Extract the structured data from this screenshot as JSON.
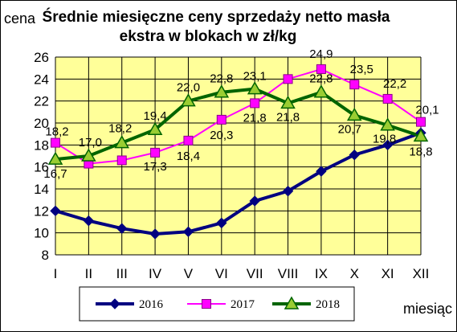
{
  "chart_data": {
    "type": "line",
    "title_lines": [
      "Średnie miesięczne ceny sprzedaży netto masła",
      "ekstra w blokach w zł/kg"
    ],
    "ylabel": "cena",
    "xlabel": "miesiąc",
    "categories": [
      "I",
      "II",
      "III",
      "IV",
      "V",
      "VI",
      "VII",
      "VIII",
      "IX",
      "X",
      "XI",
      "XII"
    ],
    "ylim": [
      8,
      26
    ],
    "yticks": [
      8,
      10,
      12,
      14,
      16,
      18,
      20,
      22,
      24,
      26
    ],
    "grid": true,
    "plot_background": "#FFFF99",
    "legend_position": "bottom",
    "series": [
      {
        "name": "2016",
        "color": "#000080",
        "marker": "diamond",
        "values": [
          12.0,
          11.1,
          10.4,
          9.9,
          10.1,
          10.9,
          12.9,
          13.8,
          15.6,
          17.1,
          18.0,
          19.1
        ],
        "data_labels": null
      },
      {
        "name": "2017",
        "color": "#FF00FF",
        "marker": "square",
        "values": [
          18.2,
          16.3,
          16.6,
          17.3,
          18.4,
          20.3,
          21.8,
          24.0,
          24.9,
          23.5,
          22.2,
          20.1
        ],
        "data_labels": [
          "18,2",
          null,
          null,
          "17,3",
          "18,4",
          "20,3",
          "21,8",
          null,
          "24,9",
          "23,5",
          "22,2",
          "20,1"
        ]
      },
      {
        "name": "2018",
        "color": "#006400",
        "marker": "triangle",
        "values": [
          16.7,
          17.0,
          18.2,
          19.4,
          22.0,
          22.8,
          23.1,
          21.8,
          22.8,
          20.7,
          19.8,
          18.8
        ],
        "data_labels": [
          "16,7",
          "17,0",
          "18,2",
          "19,4",
          "22,0",
          "22,8",
          "23,1",
          "21,8",
          "22,8",
          "20,7",
          "19,8",
          "18,8"
        ]
      }
    ]
  }
}
